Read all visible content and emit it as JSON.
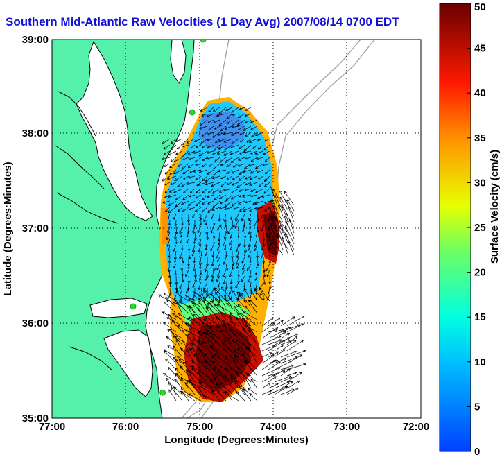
{
  "title": "Southern Mid-Atlantic Raw Velocities (1 Day Avg) 2007/08/14 0700 EDT",
  "xlabel": "Longitude (Degrees:Minutes)",
  "ylabel": "Latitude (Degrees:Minutes)",
  "x_ticks": [
    "77:00",
    "76:00",
    "75:00",
    "74:00",
    "73:00",
    "72:00"
  ],
  "y_ticks": [
    "39:00",
    "38:00",
    "37:00",
    "36:00",
    "35:00"
  ],
  "colorbar": {
    "label": "Surface Velocity (cm/s)",
    "ticks": [
      "0",
      "5",
      "10",
      "15",
      "20",
      "25",
      "30",
      "35",
      "40",
      "45",
      "50"
    ],
    "min": 0,
    "max": 50
  },
  "colors": {
    "land": "#55f0aa",
    "title": "#1010d8",
    "station": "#22dd22"
  },
  "chart_data": {
    "type": "heatmap",
    "xlim": [
      -77,
      -72
    ],
    "ylim": [
      35,
      39
    ],
    "grid": true,
    "stations": [
      {
        "lon": -74.95,
        "lat": 39.0
      },
      {
        "lon": -75.1,
        "lat": 38.23
      },
      {
        "lon": -75.9,
        "lat": 36.18
      },
      {
        "lon": -75.5,
        "lat": 35.27
      }
    ]
  }
}
